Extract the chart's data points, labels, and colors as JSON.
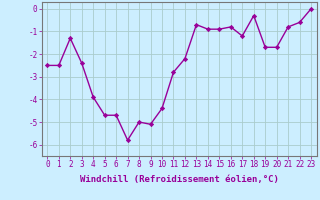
{
  "x": [
    0,
    1,
    2,
    3,
    4,
    5,
    6,
    7,
    8,
    9,
    10,
    11,
    12,
    13,
    14,
    15,
    16,
    17,
    18,
    19,
    20,
    21,
    22,
    23
  ],
  "y": [
    -2.5,
    -2.5,
    -1.3,
    -2.4,
    -3.9,
    -4.7,
    -4.7,
    -5.8,
    -5.0,
    -5.1,
    -4.4,
    -2.8,
    -2.2,
    -0.7,
    -0.9,
    -0.9,
    -0.8,
    -1.2,
    -0.3,
    -1.7,
    -1.7,
    -0.8,
    -0.6,
    0.0
  ],
  "line_color": "#990099",
  "marker": "D",
  "marker_size": 2.2,
  "bg_color": "#cceeff",
  "grid_color": "#aacccc",
  "xlabel": "Windchill (Refroidissement éolien,°C)",
  "ylabel": "",
  "xlim": [
    -0.5,
    23.5
  ],
  "ylim": [
    -6.5,
    0.3
  ],
  "yticks": [
    0,
    -1,
    -2,
    -3,
    -4,
    -5,
    -6
  ],
  "xtick_labels": [
    "0",
    "1",
    "2",
    "3",
    "4",
    "5",
    "6",
    "7",
    "8",
    "9",
    "10",
    "11",
    "12",
    "13",
    "14",
    "15",
    "16",
    "17",
    "18",
    "19",
    "20",
    "21",
    "22",
    "23"
  ],
  "xlabel_fontsize": 6.5,
  "tick_fontsize": 5.5,
  "line_width": 1.0
}
